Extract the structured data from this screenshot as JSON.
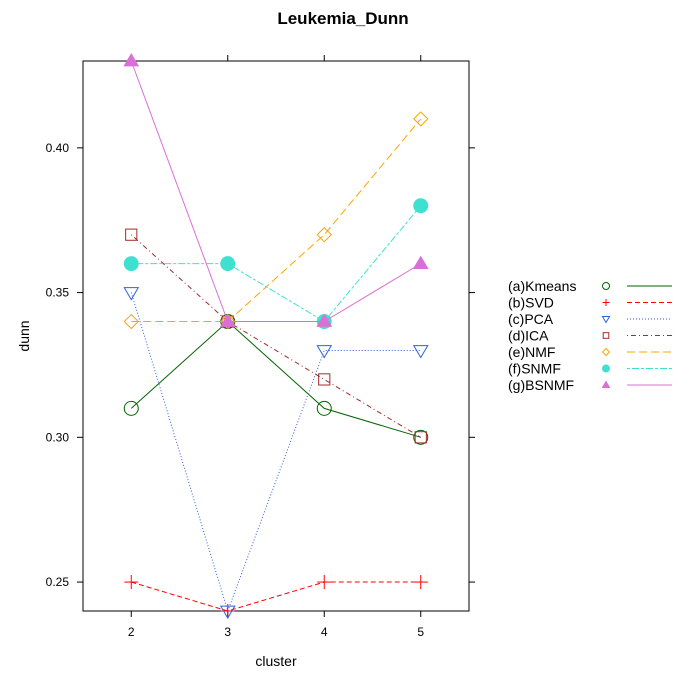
{
  "chart_data": {
    "type": "line",
    "title": "Leukemia_Dunn",
    "xlabel": "cluster",
    "ylabel": "dunn",
    "x": [
      2,
      3,
      4,
      5
    ],
    "xlim": [
      1.5,
      5.5
    ],
    "ylim": [
      0.24,
      0.43
    ],
    "xticks": [
      "2",
      "3",
      "4",
      "5"
    ],
    "yticks": [
      "0.25",
      "0.30",
      "0.35",
      "0.40"
    ],
    "legend_position": "right",
    "series": [
      {
        "name": "(a)Kmeans",
        "values": [
          0.31,
          0.34,
          0.31,
          0.3
        ],
        "color": "#006400",
        "marker": "circle",
        "dash": "solid"
      },
      {
        "name": "(b)SVD",
        "values": [
          0.25,
          0.24,
          0.25,
          0.25
        ],
        "color": "#ff0000",
        "marker": "plus",
        "dash": "dashed"
      },
      {
        "name": "(c)PCA",
        "values": [
          0.35,
          0.24,
          0.33,
          0.33
        ],
        "color": "#3060e0",
        "marker": "triangle-down",
        "dash": "dotted"
      },
      {
        "name": "(d)ICA",
        "values": [
          0.37,
          0.34,
          0.32,
          0.3
        ],
        "color": "#a52a2a",
        "marker": "square",
        "dash": "dotdash"
      },
      {
        "name": "(e)NMF",
        "values": [
          0.34,
          0.34,
          0.37,
          0.41
        ],
        "color": "#ffa500",
        "marker": "diamond",
        "dash": "longdash"
      },
      {
        "name": "(f)SNMF",
        "values": [
          0.36,
          0.36,
          0.34,
          0.38
        ],
        "color": "#40e0d0",
        "marker": "filled-circle",
        "dash": "twodash"
      },
      {
        "name": "(g)BSNMF",
        "values": [
          0.43,
          0.34,
          0.34,
          0.36
        ],
        "color": "#da70d6",
        "marker": "filled-triangle",
        "dash": "solid"
      }
    ]
  }
}
